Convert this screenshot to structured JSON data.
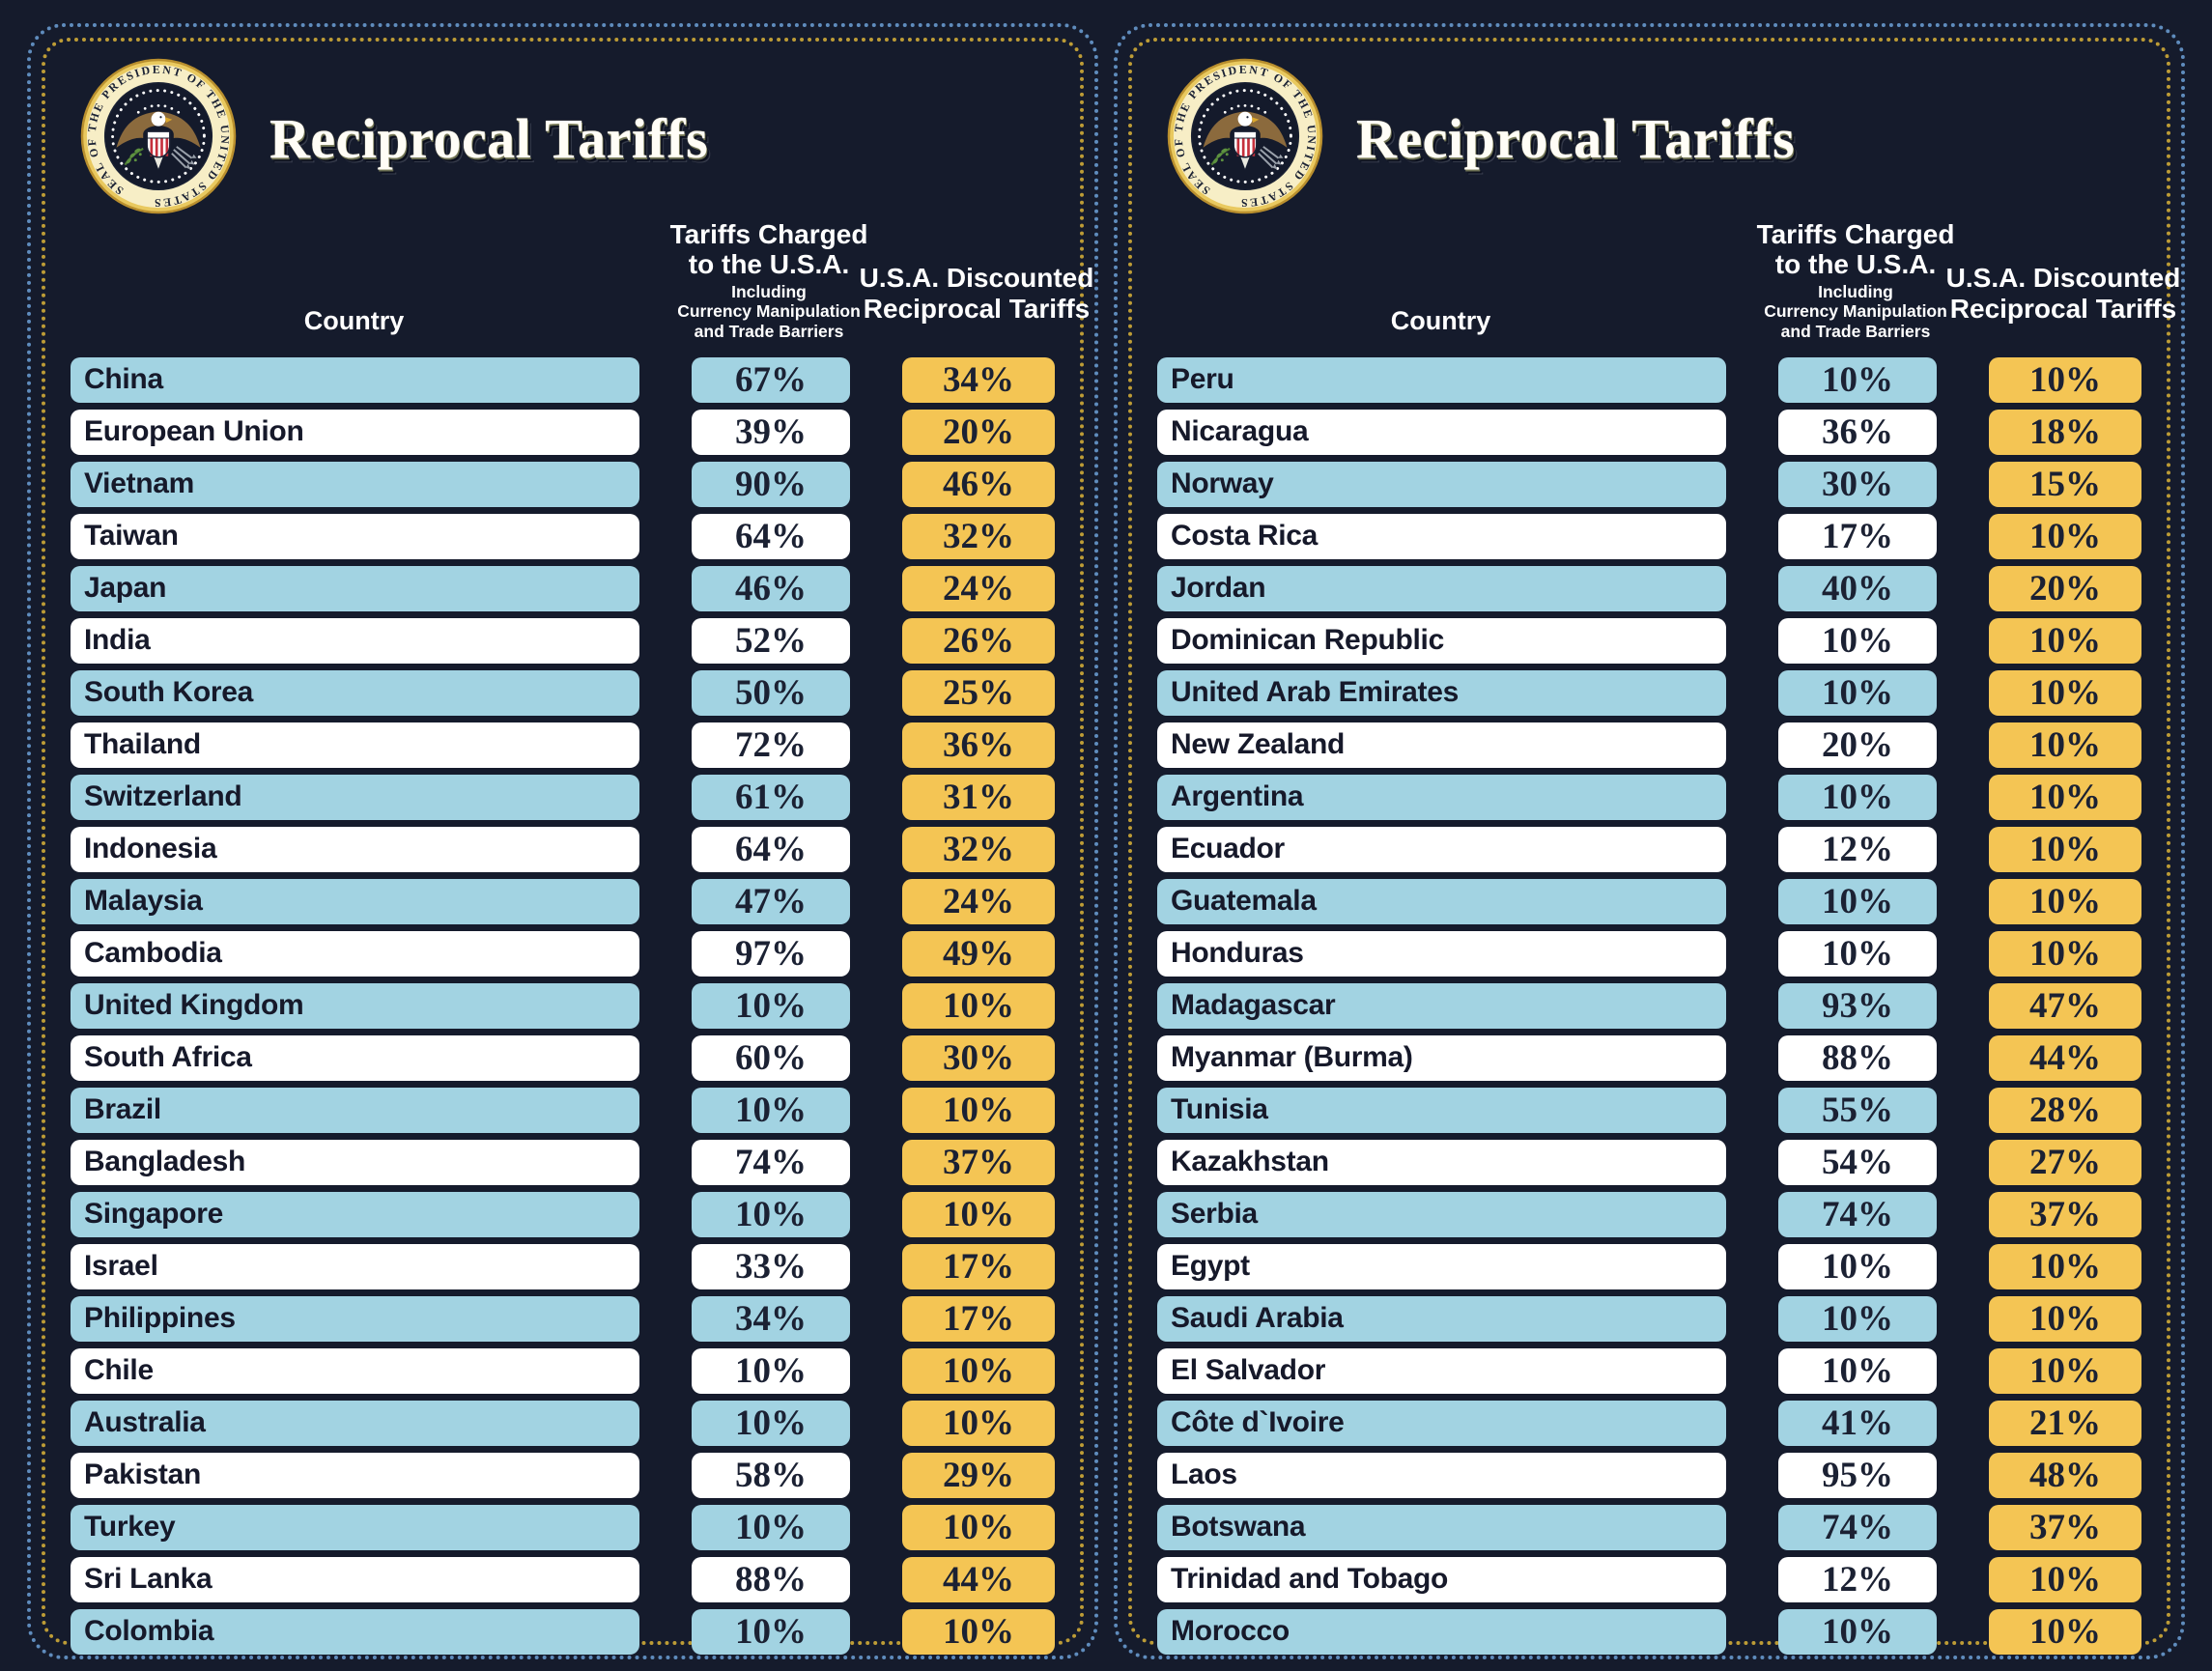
{
  "page": {
    "background": "#151b2c"
  },
  "colors": {
    "row_blue": "#a2d3e2",
    "row_white": "#ffffff",
    "tariff_gold": "#f4c554",
    "text_dark": "#16192a",
    "header_text": "#ffffff",
    "border_dots_gold": "#bd9c36",
    "border_dots_blue": "#5f8cbd"
  },
  "seal": {
    "name": "Seal of the President of the United States",
    "ring_text": "SEAL OF THE PRESIDENT OF THE UNITED STATES"
  },
  "panels": [
    {
      "title": "Reciprocal Tariffs",
      "columns": {
        "country": "Country",
        "charged_title": "Tariffs Charged\nto the U.S.A.",
        "charged_subtitle": "Including\nCurrency Manipulation\nand Trade Barriers",
        "discounted_title": "U.S.A. Discounted\nReciprocal Tariffs"
      }
    },
    {
      "title": "Reciprocal Tariffs",
      "columns": {
        "country": "Country",
        "charged_title": "Tariffs Charged\nto the U.S.A.",
        "charged_subtitle": "Including\nCurrency Manipulation\nand Trade Barriers",
        "discounted_title": "U.S.A. Discounted\nReciprocal Tariffs"
      }
    }
  ],
  "chart_data": [
    {
      "type": "table",
      "title": "Reciprocal Tariffs",
      "columns": [
        "Country",
        "Tariffs Charged to the U.S.A. Including Currency Manipulation and Trade Barriers",
        "U.S.A. Discounted Reciprocal Tariffs"
      ],
      "rows": [
        [
          "China",
          "67%",
          "34%"
        ],
        [
          "European Union",
          "39%",
          "20%"
        ],
        [
          "Vietnam",
          "90%",
          "46%"
        ],
        [
          "Taiwan",
          "64%",
          "32%"
        ],
        [
          "Japan",
          "46%",
          "24%"
        ],
        [
          "India",
          "52%",
          "26%"
        ],
        [
          "South Korea",
          "50%",
          "25%"
        ],
        [
          "Thailand",
          "72%",
          "36%"
        ],
        [
          "Switzerland",
          "61%",
          "31%"
        ],
        [
          "Indonesia",
          "64%",
          "32%"
        ],
        [
          "Malaysia",
          "47%",
          "24%"
        ],
        [
          "Cambodia",
          "97%",
          "49%"
        ],
        [
          "United Kingdom",
          "10%",
          "10%"
        ],
        [
          "South Africa",
          "60%",
          "30%"
        ],
        [
          "Brazil",
          "10%",
          "10%"
        ],
        [
          "Bangladesh",
          "74%",
          "37%"
        ],
        [
          "Singapore",
          "10%",
          "10%"
        ],
        [
          "Israel",
          "33%",
          "17%"
        ],
        [
          "Philippines",
          "34%",
          "17%"
        ],
        [
          "Chile",
          "10%",
          "10%"
        ],
        [
          "Australia",
          "10%",
          "10%"
        ],
        [
          "Pakistan",
          "58%",
          "29%"
        ],
        [
          "Turkey",
          "10%",
          "10%"
        ],
        [
          "Sri Lanka",
          "88%",
          "44%"
        ],
        [
          "Colombia",
          "10%",
          "10%"
        ]
      ]
    },
    {
      "type": "table",
      "title": "Reciprocal Tariffs",
      "columns": [
        "Country",
        "Tariffs Charged to the U.S.A. Including Currency Manipulation and Trade Barriers",
        "U.S.A. Discounted Reciprocal Tariffs"
      ],
      "rows": [
        [
          "Peru",
          "10%",
          "10%"
        ],
        [
          "Nicaragua",
          "36%",
          "18%"
        ],
        [
          "Norway",
          "30%",
          "15%"
        ],
        [
          "Costa Rica",
          "17%",
          "10%"
        ],
        [
          "Jordan",
          "40%",
          "20%"
        ],
        [
          "Dominican Republic",
          "10%",
          "10%"
        ],
        [
          "United Arab Emirates",
          "10%",
          "10%"
        ],
        [
          "New Zealand",
          "20%",
          "10%"
        ],
        [
          "Argentina",
          "10%",
          "10%"
        ],
        [
          "Ecuador",
          "12%",
          "10%"
        ],
        [
          "Guatemala",
          "10%",
          "10%"
        ],
        [
          "Honduras",
          "10%",
          "10%"
        ],
        [
          "Madagascar",
          "93%",
          "47%"
        ],
        [
          "Myanmar (Burma)",
          "88%",
          "44%"
        ],
        [
          "Tunisia",
          "55%",
          "28%"
        ],
        [
          "Kazakhstan",
          "54%",
          "27%"
        ],
        [
          "Serbia",
          "74%",
          "37%"
        ],
        [
          "Egypt",
          "10%",
          "10%"
        ],
        [
          "Saudi Arabia",
          "10%",
          "10%"
        ],
        [
          "El Salvador",
          "10%",
          "10%"
        ],
        [
          "Côte d`Ivoire",
          "41%",
          "21%"
        ],
        [
          "Laos",
          "95%",
          "48%"
        ],
        [
          "Botswana",
          "74%",
          "37%"
        ],
        [
          "Trinidad and Tobago",
          "12%",
          "10%"
        ],
        [
          "Morocco",
          "10%",
          "10%"
        ]
      ]
    }
  ]
}
